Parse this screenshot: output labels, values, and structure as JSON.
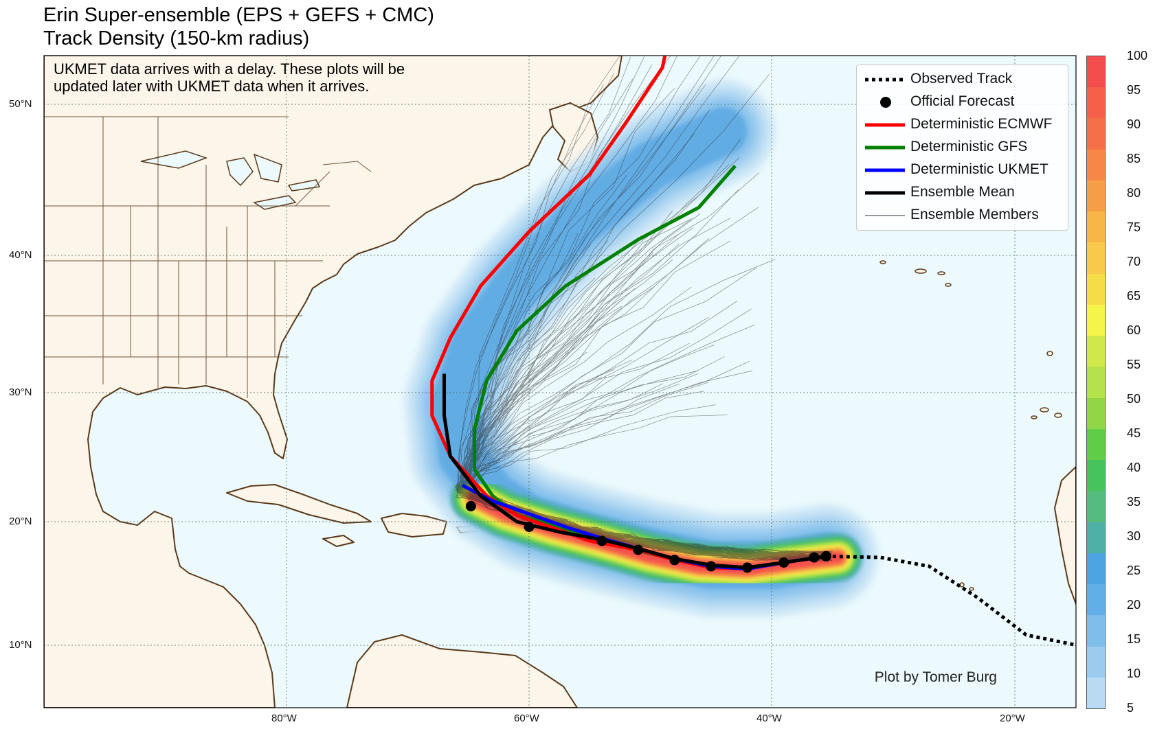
{
  "title": {
    "line1": "Erin Super-ensemble (EPS + GEFS + CMC)",
    "line2": "Track Density (150-km radius)"
  },
  "note": {
    "line1": "UKMET data arrives with a delay. These plots will be",
    "line2": "updated later with UKMET data when it arrives."
  },
  "credit": "Plot by Tomer Burg",
  "legend": [
    {
      "label": "Observed Track",
      "style": "dotted",
      "color": "#000000"
    },
    {
      "label": "Official Forecast",
      "style": "dot",
      "color": "#000000"
    },
    {
      "label": "Deterministic ECMWF",
      "style": "line",
      "color": "#ff0000"
    },
    {
      "label": "Deterministic GFS",
      "style": "line",
      "color": "#008000"
    },
    {
      "label": "Deterministic UKMET",
      "style": "line",
      "color": "#0000ff"
    },
    {
      "label": "Ensemble Mean",
      "style": "line",
      "color": "#000000"
    },
    {
      "label": "Ensemble Members",
      "style": "thin",
      "color": "#333333"
    }
  ],
  "axes": {
    "lon_labels": [
      "80°W",
      "60°W",
      "40°W",
      "20°W"
    ],
    "lat_labels": [
      "50°N",
      "40°N",
      "30°N",
      "20°N",
      "10°N"
    ]
  },
  "colorbar": {
    "labels": [
      "100",
      "95",
      "90",
      "85",
      "80",
      "75",
      "70",
      "65",
      "60",
      "55",
      "50",
      "45",
      "40",
      "35",
      "30",
      "25",
      "20",
      "15",
      "10",
      "5"
    ],
    "colors": [
      "#f44d4d",
      "#f5604a",
      "#f56f48",
      "#f78746",
      "#f59d47",
      "#f7b646",
      "#f8c94a",
      "#f6dd48",
      "#f5f549",
      "#d1e84a",
      "#b5e14a",
      "#92d647",
      "#60cc48",
      "#46c35d",
      "#55bc7e",
      "#4fb0a7",
      "#4ca4e1",
      "#62aee7",
      "#7fbdeb",
      "#9bcbef",
      "#b8dbf3"
    ]
  },
  "map": {
    "ocean_color": "#edfafd",
    "land_color": "#fcf5ea",
    "border_color": "#5a3a1a"
  },
  "tracks": {
    "observed": [
      [
        -14,
        10
      ],
      [
        -19,
        11
      ],
      [
        -23,
        14
      ],
      [
        -27,
        16.5
      ],
      [
        -31,
        17.2
      ],
      [
        -35.5,
        17.3
      ]
    ],
    "official": [
      [
        -35.5,
        17.3
      ],
      [
        -36.5,
        17.2
      ],
      [
        -39,
        16.8
      ],
      [
        -42,
        16.4
      ],
      [
        -45,
        16.5
      ],
      [
        -48,
        17
      ],
      [
        -51,
        17.8
      ],
      [
        -54,
        18.5
      ],
      [
        -60,
        19.6
      ],
      [
        -64.8,
        21.2
      ]
    ],
    "mean": [
      [
        -35.5,
        17.3
      ],
      [
        -39,
        16.8
      ],
      [
        -42,
        16.4
      ],
      [
        -45,
        16.6
      ],
      [
        -48,
        17.1
      ],
      [
        -51,
        17.9
      ],
      [
        -54,
        18.6
      ],
      [
        -57.5,
        19.2
      ],
      [
        -61,
        20
      ],
      [
        -64,
        22
      ],
      [
        -66.5,
        25
      ],
      [
        -67,
        28
      ],
      [
        -67,
        31
      ]
    ],
    "ecmwf": [
      [
        -35.5,
        17.3
      ],
      [
        -39,
        16.8
      ],
      [
        -42,
        16.3
      ],
      [
        -45,
        16.4
      ],
      [
        -48,
        17
      ],
      [
        -51,
        17.8
      ],
      [
        -55,
        18.5
      ],
      [
        -58,
        19.5
      ],
      [
        -61,
        20.5
      ],
      [
        -63.5,
        22
      ],
      [
        -66.5,
        25
      ],
      [
        -68,
        28
      ],
      [
        -68,
        30.5
      ],
      [
        -66.5,
        33.5
      ],
      [
        -64,
        37
      ],
      [
        -60,
        40.5
      ],
      [
        -55,
        44
      ],
      [
        -52,
        47
      ],
      [
        -49,
        50
      ],
      [
        -48,
        53
      ]
    ],
    "gfs": [
      [
        -35.5,
        17.3
      ],
      [
        -39,
        16.8
      ],
      [
        -42,
        16.4
      ],
      [
        -46,
        16.6
      ],
      [
        -50,
        17.5
      ],
      [
        -54,
        18.5
      ],
      [
        -58,
        19.8
      ],
      [
        -61,
        20.5
      ],
      [
        -63,
        22
      ],
      [
        -64.5,
        24
      ],
      [
        -64.5,
        27
      ],
      [
        -63.5,
        30.5
      ],
      [
        -61,
        34
      ],
      [
        -57,
        37
      ],
      [
        -51,
        40
      ],
      [
        -46,
        42
      ],
      [
        -43,
        44.5
      ]
    ],
    "ukmet": [
      [
        -35.5,
        17.3
      ],
      [
        -39,
        16.8
      ],
      [
        -42,
        16.3
      ],
      [
        -45,
        16.5
      ],
      [
        -48,
        17.1
      ],
      [
        -51,
        17.9
      ],
      [
        -54,
        18.7
      ],
      [
        -57,
        19.6
      ],
      [
        -60,
        20.6
      ],
      [
        -63,
        21.6
      ],
      [
        -65.5,
        22.8
      ]
    ]
  }
}
